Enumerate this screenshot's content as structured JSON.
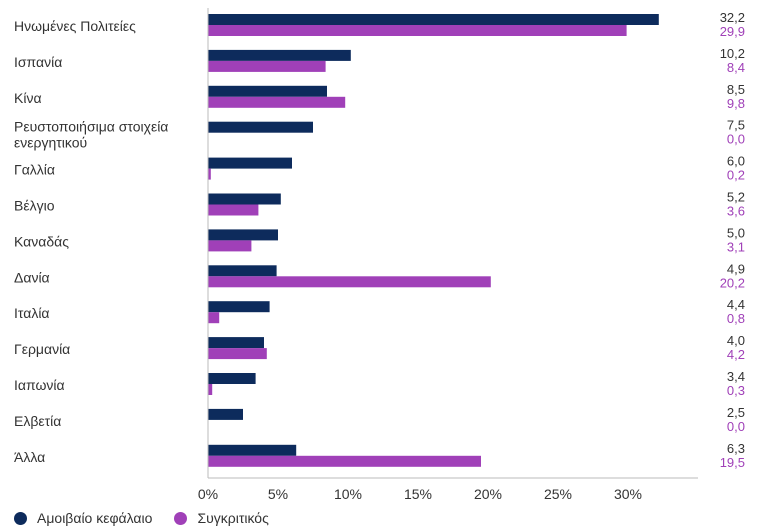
{
  "chart_data": {
    "type": "bar",
    "orientation": "horizontal",
    "categories": [
      "Ηνωμένες Πολιτείες",
      "Ισπανία",
      "Κίνα",
      "Ρευστοποιήσιμα στοιχεία ενεργητικού",
      "Γαλλία",
      "Βέλγιο",
      "Καναδάς",
      "Δανία",
      "Ιταλία",
      "Γερμανία",
      "Ιαπωνία",
      "Ελβετία",
      "Άλλα"
    ],
    "series": [
      {
        "name": "Αμοιβαίο κεφάλαιο",
        "color": "#0d2b5c",
        "values": [
          32.2,
          10.2,
          8.5,
          7.5,
          6.0,
          5.2,
          5.0,
          4.9,
          4.4,
          4.0,
          3.4,
          2.5,
          6.3
        ],
        "labels": [
          "32,2",
          "10,2",
          "8,5",
          "7,5",
          "6,0",
          "5,2",
          "5,0",
          "4,9",
          "4,4",
          "4,0",
          "3,4",
          "2,5",
          "6,3"
        ]
      },
      {
        "name": "Συγκριτικός",
        "color": "#a040b8",
        "values": [
          29.9,
          8.4,
          9.8,
          0.0,
          0.2,
          3.6,
          3.1,
          20.2,
          0.8,
          4.2,
          0.3,
          0.0,
          19.5
        ],
        "labels": [
          "29,9",
          "8,4",
          "9,8",
          "0,0",
          "0,2",
          "3,6",
          "3,1",
          "20,2",
          "0,8",
          "4,2",
          "0,3",
          "0,0",
          "19,5"
        ]
      }
    ],
    "xlim": [
      0,
      35
    ],
    "xticks": [
      0,
      5,
      10,
      15,
      20,
      25,
      30
    ],
    "xtick_labels": [
      "0%",
      "5%",
      "10%",
      "15%",
      "20%",
      "25%",
      "30%"
    ],
    "title": "",
    "xlabel": "",
    "ylabel": "",
    "legend_position": "bottom-left",
    "grid": false
  }
}
